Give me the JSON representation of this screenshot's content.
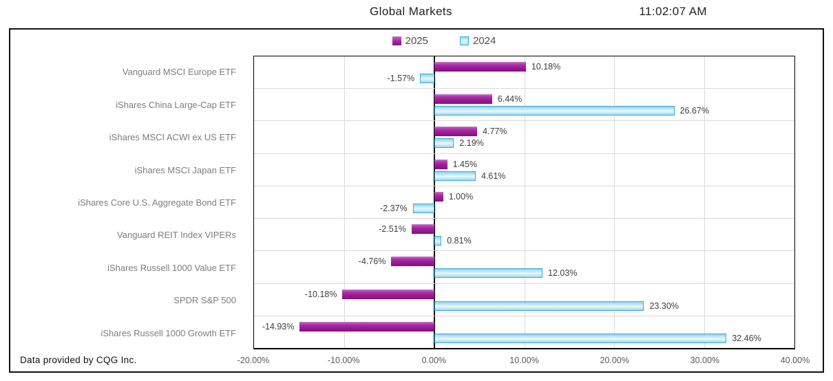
{
  "header": {
    "title": "Global Markets",
    "time": "11:02:07 AM"
  },
  "footer": {
    "note": "Data provided by CQG Inc."
  },
  "colors": {
    "series_2025": "#A2219E",
    "series_2024_fill": "#CDEBF9",
    "series_2024_border": "#3AABD5",
    "grid": "#D9D9D9",
    "axis": "#000000",
    "label_text": "#3D3D3D",
    "category_text": "#7D7D7D"
  },
  "chart_data": {
    "type": "bar",
    "orientation": "horizontal",
    "title": "Global Markets",
    "legend_position": "top-center",
    "grid": true,
    "categories": [
      "Vanguard MSCI Europe ETF",
      "iShares China Large-Cap ETF",
      "iShares MSCI ACWI ex US ETF",
      "iShares MSCI Japan ETF",
      "iShares Core U.S. Aggregate Bond ETF",
      "Vanguard REIT Index VIPERs",
      "iShares Russell 1000 Value ETF",
      "SPDR S&P 500",
      "iShares Russell 1000 Growth ETF"
    ],
    "series": [
      {
        "name": "2025",
        "color": "#A2219E",
        "values": [
          10.18,
          6.44,
          4.77,
          1.45,
          1.0,
          -2.51,
          -4.76,
          -10.18,
          -14.93
        ]
      },
      {
        "name": "2024",
        "color": "#9CD8F0",
        "values": [
          -1.57,
          26.67,
          2.19,
          4.61,
          -2.37,
          0.81,
          12.03,
          23.3,
          32.46
        ]
      }
    ],
    "value_label_format": "0.00%",
    "xlim": [
      -20,
      40
    ],
    "xticks": [
      -20,
      -10,
      0,
      10,
      20,
      30,
      40
    ],
    "xtick_labels": [
      "-20.00%",
      "-10.00%",
      "0.00%",
      "10.00%",
      "20.00%",
      "30.00%",
      "40.00%"
    ]
  }
}
